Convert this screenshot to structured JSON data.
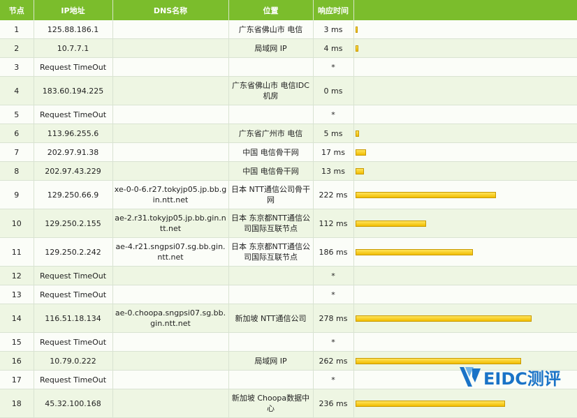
{
  "headers": {
    "node": "节点",
    "ip": "IP地址",
    "dns": "DNS名称",
    "location": "位置",
    "time": "响应时间"
  },
  "rows": [
    {
      "node": "1",
      "ip": "125.88.186.1",
      "dns": "",
      "location": "广东省佛山市 电信",
      "time": "3 ms",
      "ms": 3
    },
    {
      "node": "2",
      "ip": "10.7.7.1",
      "dns": "",
      "location": "局域网 IP",
      "time": "4 ms",
      "ms": 4
    },
    {
      "node": "3",
      "ip": "Request TimeOut",
      "dns": "",
      "location": "",
      "time": "*",
      "ms": 0
    },
    {
      "node": "4",
      "ip": "183.60.194.225",
      "dns": "",
      "location": "广东省佛山市 电信IDC机房",
      "time": "0 ms",
      "ms": 0
    },
    {
      "node": "5",
      "ip": "Request TimeOut",
      "dns": "",
      "location": "",
      "time": "*",
      "ms": 0
    },
    {
      "node": "6",
      "ip": "113.96.255.6",
      "dns": "",
      "location": "广东省广州市 电信",
      "time": "5 ms",
      "ms": 5
    },
    {
      "node": "7",
      "ip": "202.97.91.38",
      "dns": "",
      "location": "中国 电信骨干网",
      "time": "17 ms",
      "ms": 17
    },
    {
      "node": "8",
      "ip": "202.97.43.229",
      "dns": "",
      "location": "中国 电信骨干网",
      "time": "13 ms",
      "ms": 13
    },
    {
      "node": "9",
      "ip": "129.250.66.9",
      "dns": "xe-0-0-6.r27.tokyjp05.jp.bb.gin.ntt.net",
      "location": "日本 NTT通信公司骨干网",
      "time": "222 ms",
      "ms": 222
    },
    {
      "node": "10",
      "ip": "129.250.2.155",
      "dns": "ae-2.r31.tokyjp05.jp.bb.gin.ntt.net",
      "location": "日本 东京都NTT通信公司国际互联节点",
      "time": "112 ms",
      "ms": 112
    },
    {
      "node": "11",
      "ip": "129.250.2.242",
      "dns": "ae-4.r21.sngpsi07.sg.bb.gin.ntt.net",
      "location": "日本 东京都NTT通信公司国际互联节点",
      "time": "186 ms",
      "ms": 186
    },
    {
      "node": "12",
      "ip": "Request TimeOut",
      "dns": "",
      "location": "",
      "time": "*",
      "ms": 0
    },
    {
      "node": "13",
      "ip": "Request TimeOut",
      "dns": "",
      "location": "",
      "time": "*",
      "ms": 0
    },
    {
      "node": "14",
      "ip": "116.51.18.134",
      "dns": "ae-0.choopa.sngpsi07.sg.bb.gin.ntt.net",
      "location": "新加坡 NTT通信公司",
      "time": "278 ms",
      "ms": 278
    },
    {
      "node": "15",
      "ip": "Request TimeOut",
      "dns": "",
      "location": "",
      "time": "*",
      "ms": 0
    },
    {
      "node": "16",
      "ip": "10.79.0.222",
      "dns": "",
      "location": "局域网 IP",
      "time": "262 ms",
      "ms": 262
    },
    {
      "node": "17",
      "ip": "Request TimeOut",
      "dns": "",
      "location": "",
      "time": "*",
      "ms": 0
    },
    {
      "node": "18",
      "ip": "45.32.100.168",
      "dns": "",
      "location": "新加坡 Choopa数据中心",
      "time": "236 ms",
      "ms": 236
    }
  ],
  "bar_scale_max_ms": 300,
  "colors": {
    "header": "#7bbd2c",
    "bar": "#f5c400",
    "logo": "#1a73c7"
  },
  "watermark": "EIDC测评"
}
